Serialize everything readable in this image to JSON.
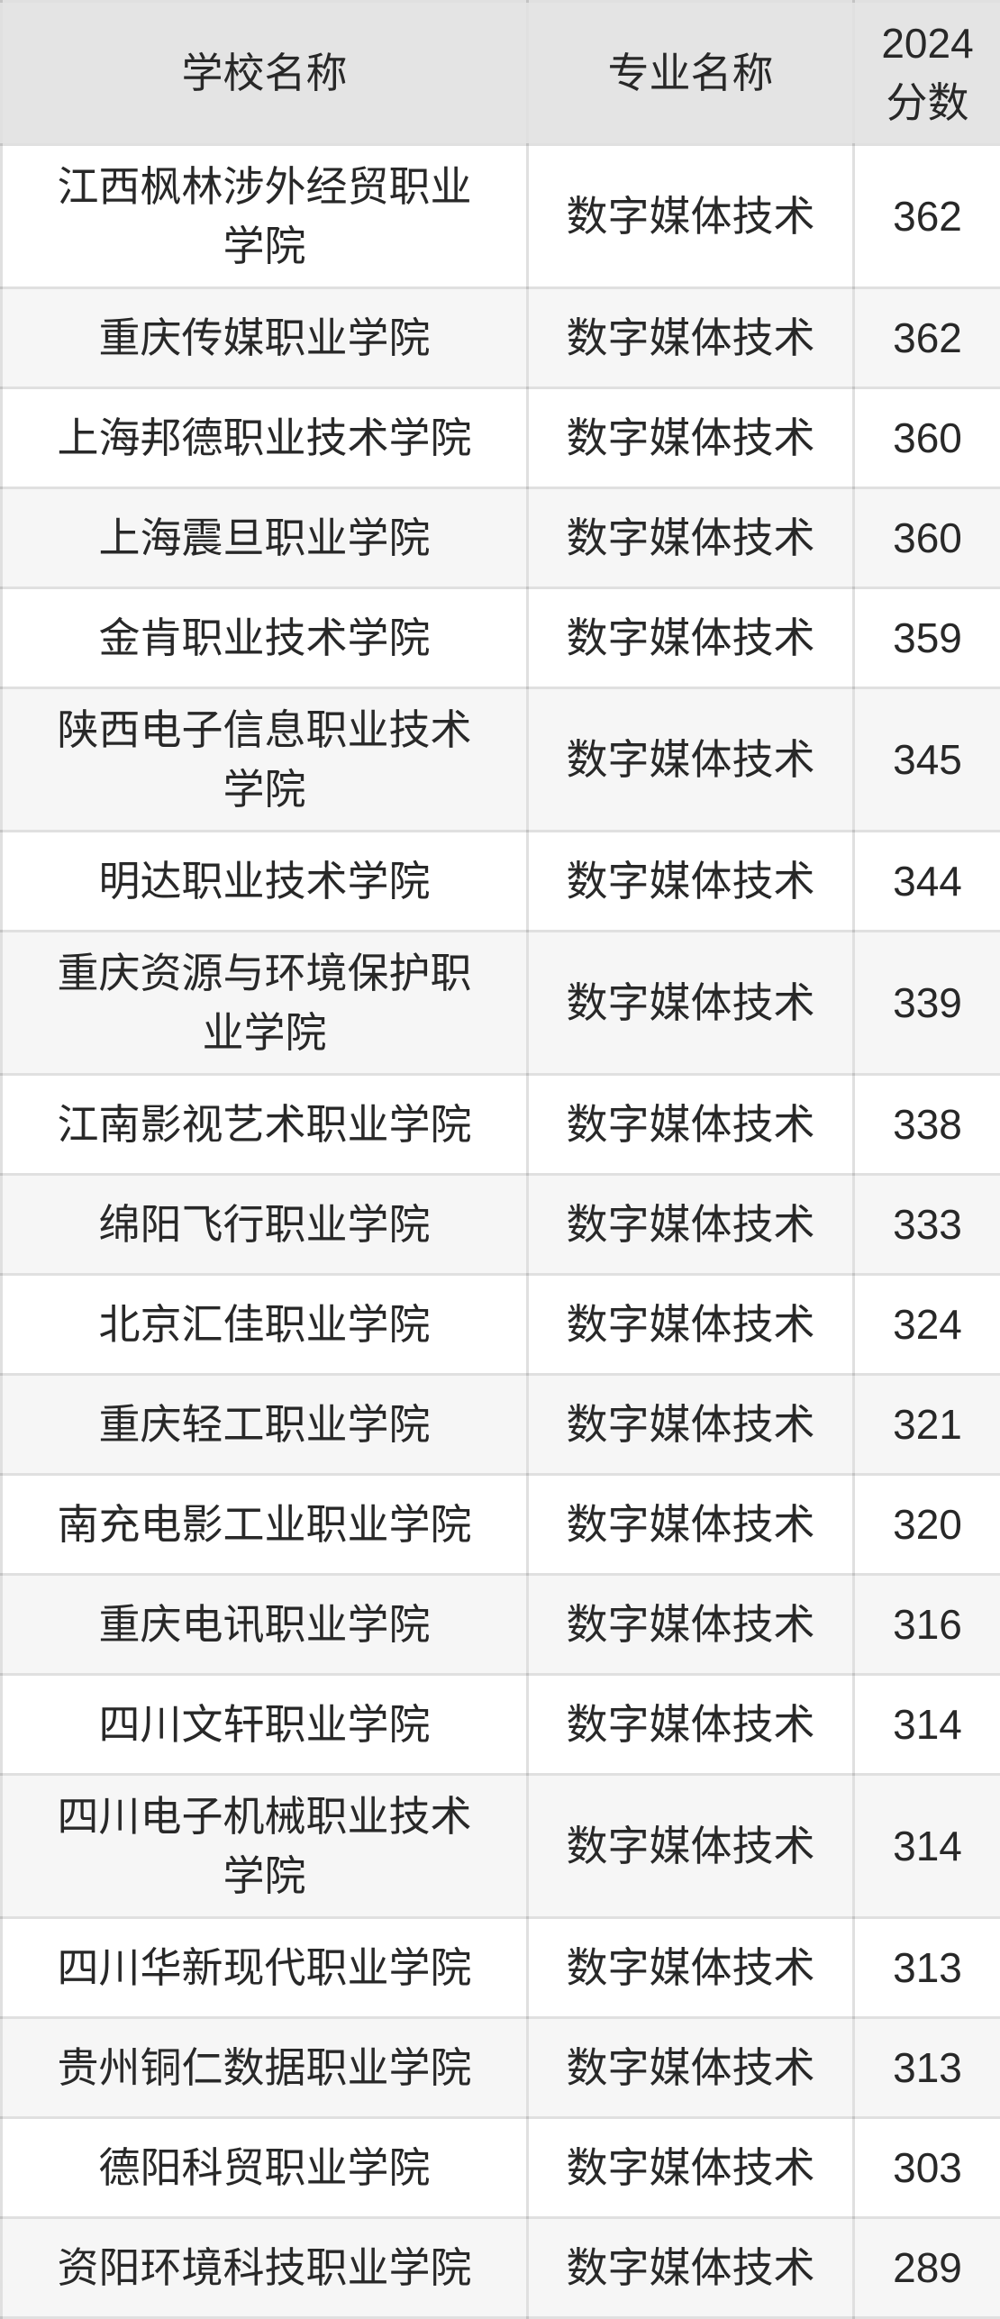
{
  "theme": {
    "header_bg": "#e4e4e4",
    "row_bg": "#ffffff",
    "row_alt_bg": "#f6f6f6",
    "border_color": "#0000001f",
    "text_color": "#282828"
  },
  "chart_data": {
    "type": "table",
    "columns": [
      "学校名称",
      "专业名称",
      "2024分数"
    ],
    "rows": [
      {
        "school": "江西枫林涉外经贸职业学院",
        "major": "数字媒体技术",
        "score": 362
      },
      {
        "school": "重庆传媒职业学院",
        "major": "数字媒体技术",
        "score": 362
      },
      {
        "school": "上海邦德职业技术学院",
        "major": "数字媒体技术",
        "score": 360
      },
      {
        "school": "上海震旦职业学院",
        "major": "数字媒体技术",
        "score": 360
      },
      {
        "school": "金肯职业技术学院",
        "major": "数字媒体技术",
        "score": 359
      },
      {
        "school": "陕西电子信息职业技术学院",
        "major": "数字媒体技术",
        "score": 345
      },
      {
        "school": "明达职业技术学院",
        "major": "数字媒体技术",
        "score": 344
      },
      {
        "school": "重庆资源与环境保护职业学院",
        "major": "数字媒体技术",
        "score": 339
      },
      {
        "school": "江南影视艺术职业学院",
        "major": "数字媒体技术",
        "score": 338
      },
      {
        "school": "绵阳飞行职业学院",
        "major": "数字媒体技术",
        "score": 333
      },
      {
        "school": "北京汇佳职业学院",
        "major": "数字媒体技术",
        "score": 324
      },
      {
        "school": "重庆轻工职业学院",
        "major": "数字媒体技术",
        "score": 321
      },
      {
        "school": "南充电影工业职业学院",
        "major": "数字媒体技术",
        "score": 320
      },
      {
        "school": "重庆电讯职业学院",
        "major": "数字媒体技术",
        "score": 316
      },
      {
        "school": "四川文轩职业学院",
        "major": "数字媒体技术",
        "score": 314
      },
      {
        "school": "四川电子机械职业技术学院",
        "major": "数字媒体技术",
        "score": 314
      },
      {
        "school": "四川华新现代职业学院",
        "major": "数字媒体技术",
        "score": 313
      },
      {
        "school": "贵州铜仁数据职业学院",
        "major": "数字媒体技术",
        "score": 313
      },
      {
        "school": "德阳科贸职业学院",
        "major": "数字媒体技术",
        "score": 303
      },
      {
        "school": "资阳环境科技职业学院",
        "major": "数字媒体技术",
        "score": 289
      }
    ]
  }
}
